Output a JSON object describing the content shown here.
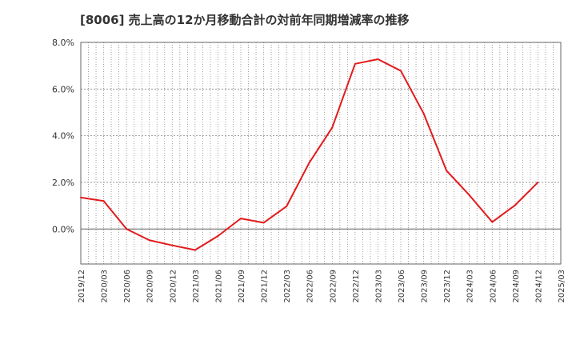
{
  "chart_data": {
    "type": "line",
    "title": "[8006]  売上高の12か月移動合計の対前年同期増減率の推移",
    "xlabel": "",
    "ylabel": "",
    "y_tick_labels": [
      "8.0%",
      "6.0%",
      "4.0%",
      "2.0%",
      "0.0%"
    ],
    "y_ticks": [
      8.0,
      6.0,
      4.0,
      2.0,
      0.0
    ],
    "ylim": [
      -1.5,
      8.0
    ],
    "x_tick_labels": [
      "2019/12",
      "2020/03",
      "2020/06",
      "2020/09",
      "2020/12",
      "2021/03",
      "2021/06",
      "2021/09",
      "2021/12",
      "2022/03",
      "2022/06",
      "2022/09",
      "2022/12",
      "2023/03",
      "2023/06",
      "2023/09",
      "2023/12",
      "2024/03",
      "2024/06",
      "2024/09",
      "2024/12",
      "2025/03"
    ],
    "grid": true,
    "series": [
      {
        "name": "",
        "color": "#e31a1c",
        "x": [
          "2019/12",
          "2020/03",
          "2020/06",
          "2020/09",
          "2020/12",
          "2021/03",
          "2021/06",
          "2021/09",
          "2021/12",
          "2022/03",
          "2022/06",
          "2022/09",
          "2022/12",
          "2023/03",
          "2023/06",
          "2023/09",
          "2023/12",
          "2024/03",
          "2024/06",
          "2024/09",
          "2024/12"
        ],
        "values": [
          1.35,
          1.2,
          0.0,
          -0.48,
          -0.7,
          -0.9,
          -0.3,
          0.45,
          0.27,
          0.97,
          2.85,
          4.35,
          7.08,
          7.28,
          6.78,
          4.95,
          2.5,
          1.45,
          0.3,
          1.02,
          2.0
        ]
      }
    ]
  }
}
